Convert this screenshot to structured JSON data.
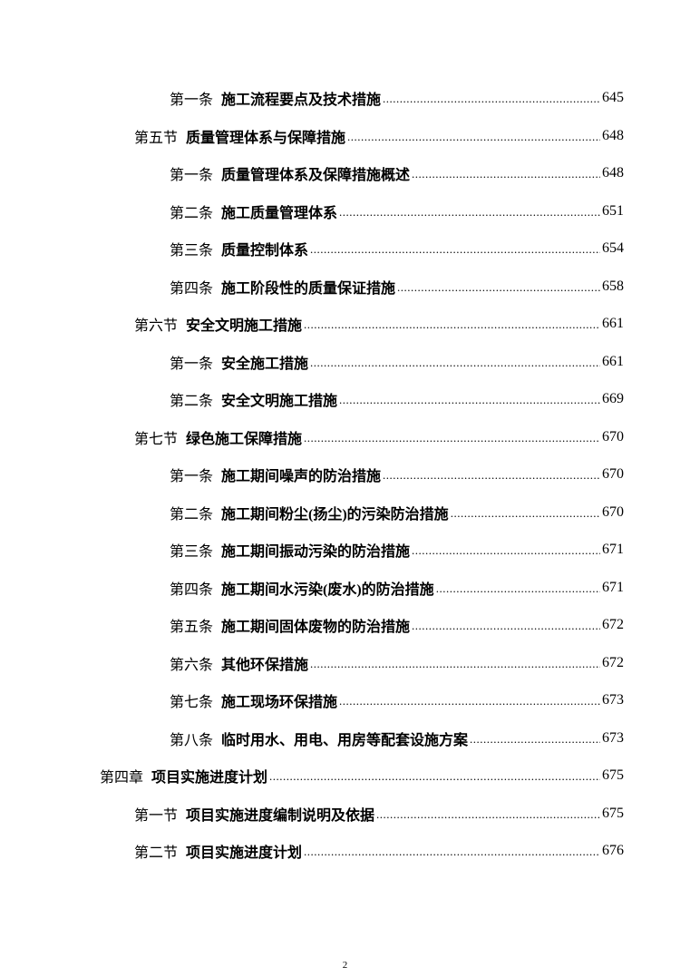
{
  "toc": [
    {
      "level": 3,
      "label": "第一条",
      "title": "施工流程要点及技术措施",
      "page": "645"
    },
    {
      "level": 2,
      "label": "第五节",
      "title": "质量管理体系与保障措施",
      "page": "648"
    },
    {
      "level": 3,
      "label": "第一条",
      "title": "质量管理体系及保障措施概述",
      "page": "648"
    },
    {
      "level": 3,
      "label": "第二条",
      "title": "施工质量管理体系",
      "page": "651"
    },
    {
      "level": 3,
      "label": "第三条",
      "title": "质量控制体系",
      "page": "654"
    },
    {
      "level": 3,
      "label": "第四条",
      "title": "施工阶段性的质量保证措施",
      "page": "658"
    },
    {
      "level": 2,
      "label": "第六节",
      "title": "安全文明施工措施",
      "page": "661"
    },
    {
      "level": 3,
      "label": "第一条",
      "title": "安全施工措施",
      "page": "661"
    },
    {
      "level": 3,
      "label": "第二条",
      "title": "安全文明施工措施",
      "page": "669"
    },
    {
      "level": 2,
      "label": "第七节",
      "title": "绿色施工保障措施",
      "page": "670"
    },
    {
      "level": 3,
      "label": "第一条",
      "title": "施工期间噪声的防治措施",
      "page": "670"
    },
    {
      "level": 3,
      "label": "第二条",
      "title": "施工期间粉尘(扬尘)的污染防治措施",
      "page": "670"
    },
    {
      "level": 3,
      "label": "第三条",
      "title": "施工期间振动污染的防治措施",
      "page": "671"
    },
    {
      "level": 3,
      "label": "第四条",
      "title": "施工期间水污染(废水)的防治措施",
      "page": "671"
    },
    {
      "level": 3,
      "label": "第五条",
      "title": "施工期间固体废物的防治措施",
      "page": "672"
    },
    {
      "level": 3,
      "label": "第六条",
      "title": "其他环保措施",
      "page": "672"
    },
    {
      "level": 3,
      "label": "第七条",
      "title": "施工现场环保措施",
      "page": "673"
    },
    {
      "level": 3,
      "label": "第八条",
      "title": "临时用水、用电、用房等配套设施方案",
      "page": "673"
    },
    {
      "level": 1,
      "label": "第四章",
      "title": "项目实施进度计划",
      "page": "675"
    },
    {
      "level": 2,
      "label": "第一节",
      "title": "项目实施进度编制说明及依据",
      "page": "675"
    },
    {
      "level": 2,
      "label": "第二节",
      "title": "项目实施进度计划",
      "page": "676"
    }
  ],
  "footer": {
    "page_number": "2"
  }
}
